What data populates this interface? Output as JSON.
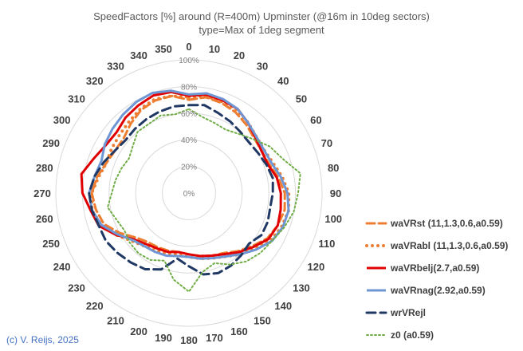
{
  "chart_data": {
    "type": "radar",
    "title": "SpeedFactors [%] around (R=400m) Upminster (@16m in 10deg sectors)",
    "subtitle": "type=Max of 1deg segment",
    "categories": [
      "0",
      "10",
      "20",
      "30",
      "40",
      "50",
      "60",
      "70",
      "80",
      "90",
      "100",
      "110",
      "120",
      "130",
      "140",
      "150",
      "160",
      "170",
      "180",
      "190",
      "200",
      "210",
      "220",
      "230",
      "240",
      "250",
      "260",
      "270",
      "280",
      "290",
      "300",
      "310",
      "320",
      "330",
      "340",
      "350"
    ],
    "r_ticks": [
      "0%",
      "20%",
      "40%",
      "60%",
      "80%",
      "100%"
    ],
    "r_max": 100,
    "grid": true,
    "legend_position": "right",
    "series": [
      {
        "name": "waVRst (11,1.3,0.6,a0.59)",
        "color": "#ed7d31",
        "dash": "10,5",
        "width": 3,
        "values": [
          70,
          73,
          72,
          70,
          67,
          64,
          63,
          64,
          68,
          72,
          73,
          71,
          68,
          62,
          57,
          52,
          50,
          48,
          46,
          45,
          46,
          47,
          48,
          52,
          60,
          68,
          71,
          73,
          70,
          66,
          64,
          64,
          68,
          72,
          74,
          74
        ]
      },
      {
        "name": "waVRabl (11,1.3,0.6,a0.59)",
        "color": "#ed7d31",
        "dash": "0,7",
        "width": 4,
        "values": [
          72,
          74,
          73,
          72,
          69,
          66,
          65,
          67,
          71,
          75,
          76,
          74,
          71,
          65,
          60,
          55,
          52,
          50,
          48,
          47,
          48,
          50,
          52,
          56,
          63,
          70,
          74,
          73,
          69,
          66,
          67,
          68,
          70,
          73,
          75,
          74
        ]
      },
      {
        "name": "waVRbelj(2.7,a0.59)",
        "color": "#e00000",
        "dash": "",
        "width": 3,
        "values": [
          73,
          75,
          74,
          73,
          69,
          65,
          63,
          63,
          67,
          69,
          70,
          71,
          69,
          63,
          58,
          53,
          50,
          48,
          46,
          45,
          47,
          48,
          50,
          54,
          63,
          72,
          75,
          80,
          82,
          76,
          72,
          71,
          74,
          76,
          78,
          77
        ]
      },
      {
        "name": "waVRnag(2.92,a0.59)",
        "color": "#6f96d4",
        "dash": "",
        "width": 3,
        "values": [
          74,
          76,
          75,
          73,
          69,
          66,
          65,
          66,
          70,
          74,
          76,
          75,
          72,
          66,
          60,
          55,
          52,
          50,
          48,
          48,
          50,
          51,
          52,
          55,
          62,
          70,
          74,
          75,
          72,
          70,
          73,
          75,
          77,
          79,
          80,
          78
        ]
      },
      {
        "name": "wrVRejl",
        "color": "#203864",
        "dash": "11,6",
        "width": 3,
        "values": [
          66,
          67,
          64,
          62,
          60,
          59,
          60,
          62,
          64,
          63,
          62,
          63,
          63,
          59,
          61,
          63,
          64,
          62,
          55,
          50,
          61,
          66,
          68,
          70,
          72,
          72,
          74,
          75,
          72,
          68,
          64,
          62,
          63,
          64,
          65,
          66
        ]
      },
      {
        "name": "z0 (a0.59)",
        "color": "#70ad47",
        "dash": "2,3",
        "width": 2,
        "values": [
          63,
          58,
          56,
          55,
          58,
          63,
          70,
          75,
          85,
          82,
          80,
          76,
          72,
          70,
          67,
          62,
          56,
          60,
          74,
          66,
          54,
          58,
          59,
          58,
          56,
          58,
          62,
          58,
          56,
          54,
          52,
          55,
          60,
          60,
          62,
          60
        ]
      }
    ]
  },
  "copyright": "(c) V. Reijs, 2025"
}
